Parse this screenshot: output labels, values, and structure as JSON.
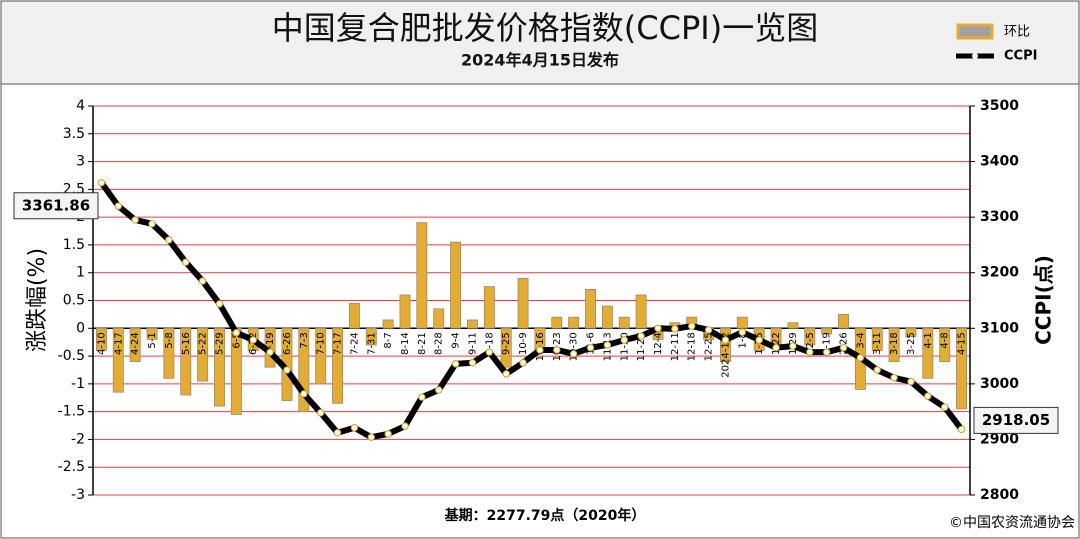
{
  "chart_data": {
    "type": "bar-line",
    "title": "中国复合肥批发价格指数(CCPI)一览图",
    "subtitle": "2024年4月15日发布",
    "y_label": "涨跌幅(%)",
    "y2_label": "CCPI(点)",
    "base_note": "基期：2277.79点（2020年）",
    "credit": "©中国农资流通协会",
    "categories": [
      "4-10",
      "4-17",
      "4-24",
      "5-1",
      "5-8",
      "5-16",
      "5-22",
      "5-29",
      "6-5",
      "6-12",
      "6-19",
      "6-26",
      "7-3",
      "7-10",
      "7-17",
      "7-24",
      "7-31",
      "8-7",
      "8-14",
      "8-21",
      "8-28",
      "9-4",
      "9-11",
      "9-18",
      "9-25",
      "10-9",
      "10-16",
      "10-23",
      "10-30",
      "11-6",
      "11-13",
      "11-20",
      "11-27",
      "12-4",
      "12-11",
      "12-18",
      "12-25",
      "2024-1-2",
      "1-8",
      "1-15",
      "1-22",
      "1-29",
      "2-5",
      "2-19",
      "2-26",
      "3-4",
      "3-11",
      "3-18",
      "3-25",
      "4-1",
      "4-8",
      "4-15"
    ],
    "series": [
      {
        "name": "环比",
        "type": "bar",
        "color": "#e3ad35",
        "values": [
          -0.4,
          -1.15,
          -0.6,
          -0.2,
          -0.9,
          -1.2,
          -0.95,
          -1.4,
          -1.55,
          -0.4,
          -0.7,
          -1.3,
          -1.5,
          -1.0,
          -1.35,
          0.45,
          -0.3,
          0.15,
          0.6,
          1.9,
          0.35,
          1.55,
          0.15,
          0.75,
          -0.7,
          0.9,
          -0.4,
          0.2,
          0.2,
          0.7,
          0.4,
          0.2,
          0.6,
          -0.2,
          0.1,
          0.2,
          -0.2,
          -0.6,
          0.2,
          -0.4,
          -0.3,
          0.1,
          -0.3,
          -0.1,
          0.25,
          -1.1,
          -0.4,
          -0.6,
          -0.15,
          -0.9,
          -0.6,
          -1.45
        ]
      },
      {
        "name": "CCPI",
        "type": "line",
        "axis": "y2",
        "color": "#000000",
        "values": [
          3361.86,
          3320,
          3295,
          3288,
          3259,
          3219,
          3185,
          3144,
          3092,
          3079,
          3057,
          3025,
          2982,
          2948,
          2912,
          2921,
          2904,
          2910,
          2924,
          2976,
          2989,
          3036,
          3038,
          3057,
          3018,
          3038,
          3061,
          3061,
          3054,
          3065,
          3070,
          3079,
          3086,
          3100,
          3099,
          3104,
          3097,
          3079,
          3093,
          3079,
          3065,
          3068,
          3057,
          3057,
          3065,
          3047,
          3025,
          3011,
          3004,
          2978,
          2958,
          2918.05
        ]
      }
    ],
    "ylim": [
      -3,
      4
    ],
    "yticks": [
      -3,
      -2.5,
      -2,
      -1.5,
      -1,
      -0.5,
      0,
      0.5,
      1,
      1.5,
      2,
      2.5,
      3,
      3.5,
      4
    ],
    "y2lim": [
      2800,
      3500
    ],
    "y2ticks": [
      2800,
      2900,
      3000,
      3100,
      3200,
      3300,
      3400,
      3500
    ],
    "grid": true,
    "grid_color": "#e0404a"
  }
}
